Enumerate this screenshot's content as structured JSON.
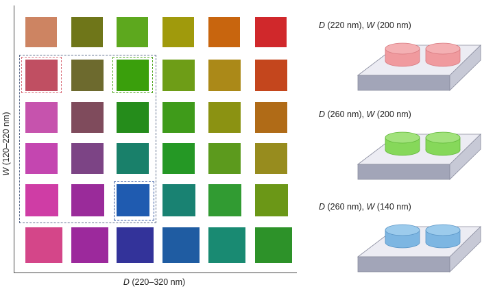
{
  "grid": {
    "y_axis_label_var": "W",
    "y_axis_label_range": "(120–220 nm)",
    "x_axis_label_var": "D",
    "x_axis_label_range": "(220–320 nm)",
    "rows": [
      [
        "#cd8462",
        "#6f7619",
        "#5da81e",
        "#a09a0c",
        "#c8650e",
        "#d0282b"
      ],
      [
        "#c04f62",
        "#6d6a2e",
        "#3a9f0c",
        "#6e9d17",
        "#ab8918",
        "#c4461d"
      ],
      [
        "#c653ad",
        "#7f4b5c",
        "#258c1b",
        "#3f9b1a",
        "#8b9212",
        "#b06b17"
      ],
      [
        "#c446b0",
        "#7c4485",
        "#19806a",
        "#259825",
        "#5c9a1d",
        "#978c1e"
      ],
      [
        "#cf3da5",
        "#9a2b9a",
        "#1f5bb0",
        "#198272",
        "#319b32",
        "#6b9717"
      ],
      [
        "#d44689",
        "#9c299c",
        "#33339a",
        "#1f5ca2",
        "#198a72",
        "#2d9229"
      ]
    ],
    "highlight_colors": {
      "outer": "#5a6a8a",
      "red": "#d9707c",
      "green": "#4ea61e",
      "blue": "#2a4f9c"
    }
  },
  "structures": [
    {
      "d_var": "D",
      "d_val": "(220 nm),",
      "w_var": "W",
      "w_val": "(200 nm)",
      "pillar_color": "#f09a9e",
      "pillar_top": "#f4b0b3",
      "pillar_edge": "#d87a80"
    },
    {
      "d_var": "D",
      "d_val": "(260 nm),",
      "w_var": "W",
      "w_val": "(200 nm)",
      "pillar_color": "#86d85a",
      "pillar_top": "#a2e27c",
      "pillar_edge": "#62b83a"
    },
    {
      "d_var": "D",
      "d_val": "(260 nm),",
      "w_var": "W",
      "w_val": "(140 nm)",
      "pillar_color": "#7db6e2",
      "pillar_top": "#9ccbec",
      "pillar_edge": "#5a95c6"
    }
  ],
  "substrate_colors": {
    "top": "#ececf3",
    "front": "#a2a5b8",
    "side": "#c7c9d6",
    "edge": "#8a8d9f"
  }
}
